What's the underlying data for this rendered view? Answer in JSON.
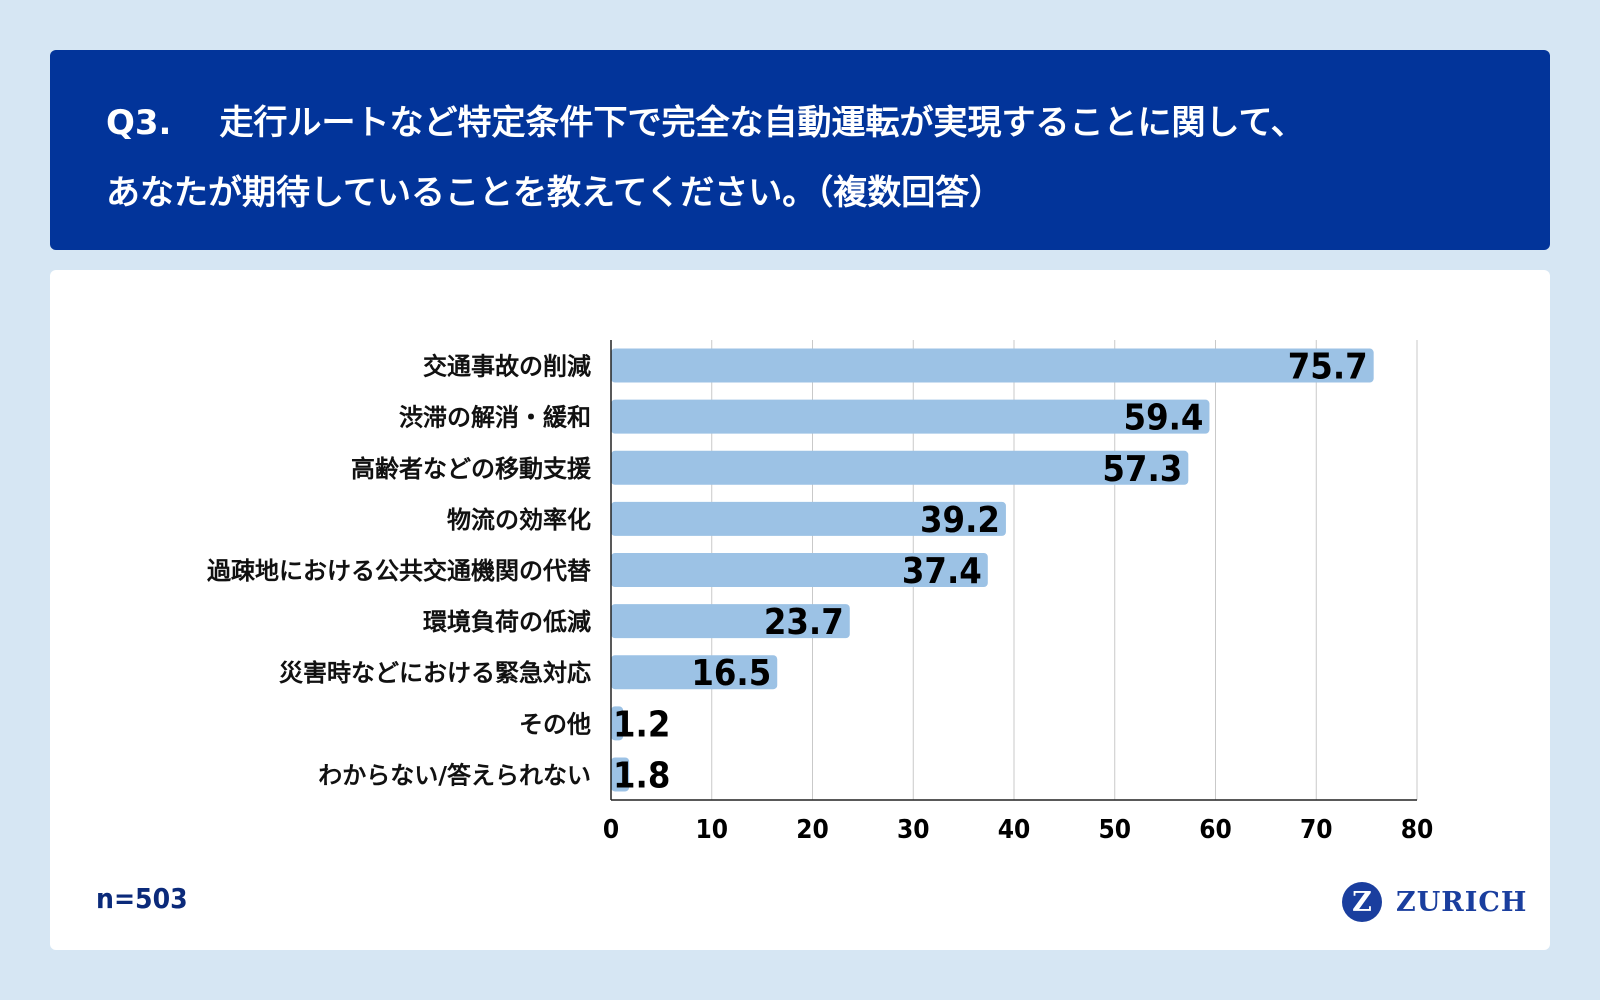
{
  "header": {
    "question_number": "Q3.",
    "line1": "走行ルートなど特定条件下で完全な自動運転が実現することに関して、",
    "line2": "あなたが期待していることを教えてください。（複数回答）"
  },
  "sample_size": "n=503",
  "logo": {
    "mark": "Z",
    "text": "ZURICH"
  },
  "colors": {
    "header_bg": "#02349a",
    "bar": "#9cc2e5",
    "page_bg": "#d6e6f3",
    "logo": "#1a3e9e"
  },
  "chart_data": {
    "type": "bar",
    "orientation": "horizontal",
    "categories": [
      "交通事故の削減",
      "渋滞の解消・緩和",
      "高齢者などの移動支援",
      "物流の効率化",
      "過疎地における公共交通機関の代替",
      "環境負荷の低減",
      "災害時などにおける緊急対応",
      "その他",
      "わからない/答えられない"
    ],
    "values": [
      75.7,
      59.4,
      57.3,
      39.2,
      37.4,
      23.7,
      16.5,
      1.2,
      1.8
    ],
    "value_labels": [
      "75.7",
      "59.4",
      "57.3",
      "39.2",
      "37.4",
      "23.7",
      "16.5",
      "1.2",
      "1.8"
    ],
    "xlim": [
      0,
      80
    ],
    "xticks": [
      "0",
      "10",
      "20",
      "30",
      "40",
      "50",
      "60",
      "70",
      "80"
    ],
    "grid": true,
    "title": "",
    "xlabel": "",
    "ylabel": ""
  }
}
